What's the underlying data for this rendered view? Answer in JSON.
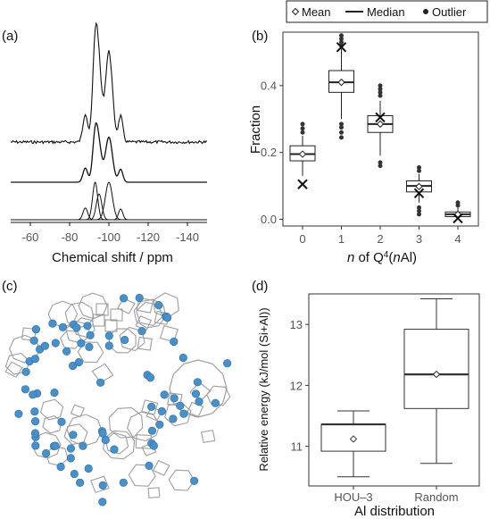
{
  "panels": {
    "a": "(a)",
    "b": "(b)",
    "c": "(c)",
    "d": "(d)"
  },
  "chart_data": [
    {
      "id": "a",
      "type": "line",
      "xlabel": "Chemical shift / ppm",
      "xlim": [
        -50,
        -150
      ],
      "xticks": [
        -60,
        -80,
        -100,
        -120,
        -140
      ],
      "x_reversed": true,
      "series_description": "stacked 29Si NMR spectra: experimental (top), fitted sum (middle), deconvoluted components (bottom)",
      "peak_positions": [
        -88,
        -93,
        -95,
        -100,
        -106
      ]
    },
    {
      "id": "b",
      "type": "box",
      "xlabel_pre": "n",
      "xlabel_mid": " of Q",
      "xlabel_sup": "4",
      "xlabel_post1": "(",
      "xlabel_n2": "n",
      "xlabel_post2": "Al)",
      "ylabel": "Fraction",
      "ylim": [
        -0.02,
        0.56
      ],
      "yticks": [
        0.0,
        0.2,
        0.4
      ],
      "ytick_labels": [
        "0.0",
        "0.2",
        "0.4"
      ],
      "legend": {
        "mean": "Mean",
        "median": "Median",
        "outlier": "Outlier"
      },
      "categories": [
        "0",
        "1",
        "2",
        "3",
        "4"
      ],
      "boxes": [
        {
          "q1": 0.175,
          "median": 0.195,
          "q3": 0.22,
          "wlo": 0.13,
          "whi": 0.25,
          "mean": 0.195,
          "outliers": [
            0.26,
            0.272,
            0.285
          ],
          "x_marker": 0.105
        },
        {
          "q1": 0.38,
          "median": 0.41,
          "q3": 0.445,
          "wlo": 0.3,
          "whi": 0.51,
          "mean": 0.41,
          "outliers": [
            0.245,
            0.26,
            0.275,
            0.285,
            0.52,
            0.53,
            0.54,
            0.55
          ],
          "x_marker": 0.515
        },
        {
          "q1": 0.26,
          "median": 0.285,
          "q3": 0.31,
          "wlo": 0.19,
          "whi": 0.355,
          "mean": 0.285,
          "outliers": [
            0.16,
            0.17,
            0.37,
            0.38,
            0.39,
            0.4
          ],
          "x_marker": 0.305
        },
        {
          "q1": 0.082,
          "median": 0.1,
          "q3": 0.115,
          "wlo": 0.05,
          "whi": 0.135,
          "mean": 0.098,
          "outliers": [
            0.015,
            0.025,
            0.035,
            0.145,
            0.155
          ],
          "x_marker": 0.078
        },
        {
          "q1": 0.008,
          "median": 0.015,
          "q3": 0.022,
          "wlo": 0.0,
          "whi": 0.038,
          "mean": 0.015,
          "outliers": [
            0.042,
            0.05
          ],
          "x_marker": 0.003
        }
      ]
    },
    {
      "id": "d",
      "type": "box",
      "xlabel": "Al distribution",
      "ylabel": "Relative energy (kJ/mol (Si+Al))",
      "ylim": [
        10.35,
        13.5
      ],
      "yticks": [
        11,
        12,
        13
      ],
      "ytick_labels": [
        "11",
        "12",
        "13"
      ],
      "categories": [
        "HOU–3",
        "Random"
      ],
      "boxes": [
        {
          "q1": 10.92,
          "median": 11.36,
          "q3": 11.36,
          "wlo": 10.5,
          "whi": 11.58,
          "mean": 11.12
        },
        {
          "q1": 11.62,
          "median": 12.18,
          "q3": 12.92,
          "wlo": 10.72,
          "whi": 13.42,
          "mean": 12.18
        }
      ]
    }
  ],
  "structure": {
    "atom_color": "#4a90c8",
    "bond_color": "#9e9e9e"
  }
}
